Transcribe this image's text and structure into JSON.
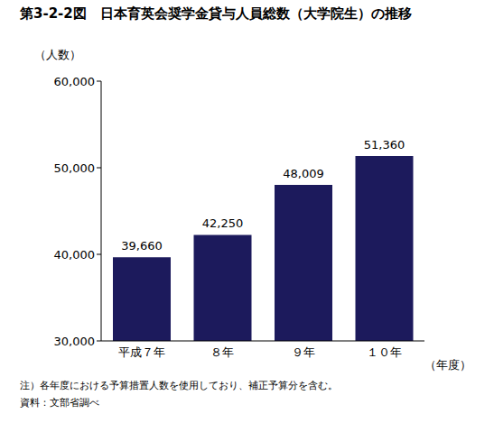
{
  "chart_data": {
    "type": "bar",
    "title": "第3-2-2図　日本育英会奨学金貸与人員総数（大学院生）の推移",
    "y_label": "（人数）",
    "x_label": "（年度）",
    "categories": [
      "平成７年",
      "８年",
      "９年",
      "１０年"
    ],
    "values": [
      39660,
      42250,
      48009,
      51360
    ],
    "value_labels": [
      "39,660",
      "42,250",
      "48,009",
      "51,360"
    ],
    "data_labels": true,
    "color": "#1c1a5c",
    "ylim": [
      30000,
      60000
    ],
    "yticks": [
      {
        "value": 30000,
        "label": "30,000"
      },
      {
        "value": 40000,
        "label": "40,000"
      },
      {
        "value": 50000,
        "label": "50,000"
      },
      {
        "value": 60000,
        "label": "60,000"
      }
    ],
    "grid": false,
    "annotations": [
      "注）各年度における予算措置人数を使用しており、補正予算分を含む。",
      "資料：文部省調べ"
    ]
  }
}
